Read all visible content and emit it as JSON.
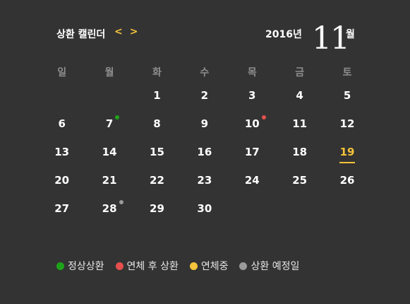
{
  "header": {
    "title": "상환 캘린더",
    "prev_label": "<",
    "next_label": ">",
    "year_label": "2016년",
    "month_number": "11",
    "month_unit": "월"
  },
  "colors": {
    "background": "#333333",
    "accent": "#f5c33b",
    "normal": "#1ea21a",
    "overdue_repaid": "#e5504e",
    "overdue": "#f5c33b",
    "scheduled": "#9a9a9a",
    "weekday_header": "#8e8e8e"
  },
  "weekdays": [
    "일",
    "월",
    "화",
    "수",
    "목",
    "금",
    "토"
  ],
  "weeks": [
    [
      {
        "d": ""
      },
      {
        "d": ""
      },
      {
        "d": "1"
      },
      {
        "d": "2"
      },
      {
        "d": "3"
      },
      {
        "d": "4"
      },
      {
        "d": "5"
      }
    ],
    [
      {
        "d": "6"
      },
      {
        "d": "7",
        "dot": "normal"
      },
      {
        "d": "8"
      },
      {
        "d": "9"
      },
      {
        "d": "10",
        "dot": "overdue_repaid"
      },
      {
        "d": "11"
      },
      {
        "d": "12"
      }
    ],
    [
      {
        "d": "13"
      },
      {
        "d": "14"
      },
      {
        "d": "15"
      },
      {
        "d": "16"
      },
      {
        "d": "17"
      },
      {
        "d": "18"
      },
      {
        "d": "19",
        "today": true
      }
    ],
    [
      {
        "d": "20"
      },
      {
        "d": "21"
      },
      {
        "d": "22"
      },
      {
        "d": "23"
      },
      {
        "d": "24"
      },
      {
        "d": "25"
      },
      {
        "d": "26"
      }
    ],
    [
      {
        "d": "27"
      },
      {
        "d": "28",
        "dot": "scheduled"
      },
      {
        "d": "29"
      },
      {
        "d": "30"
      },
      {
        "d": ""
      },
      {
        "d": ""
      },
      {
        "d": ""
      }
    ]
  ],
  "legend": [
    {
      "label": "정상상환",
      "color": "#1ea21a"
    },
    {
      "label": "연체 후 상환",
      "color": "#e5504e"
    },
    {
      "label": "연체중",
      "color": "#f5c33b"
    },
    {
      "label": "상환 예정일",
      "color": "#9a9a9a"
    }
  ]
}
